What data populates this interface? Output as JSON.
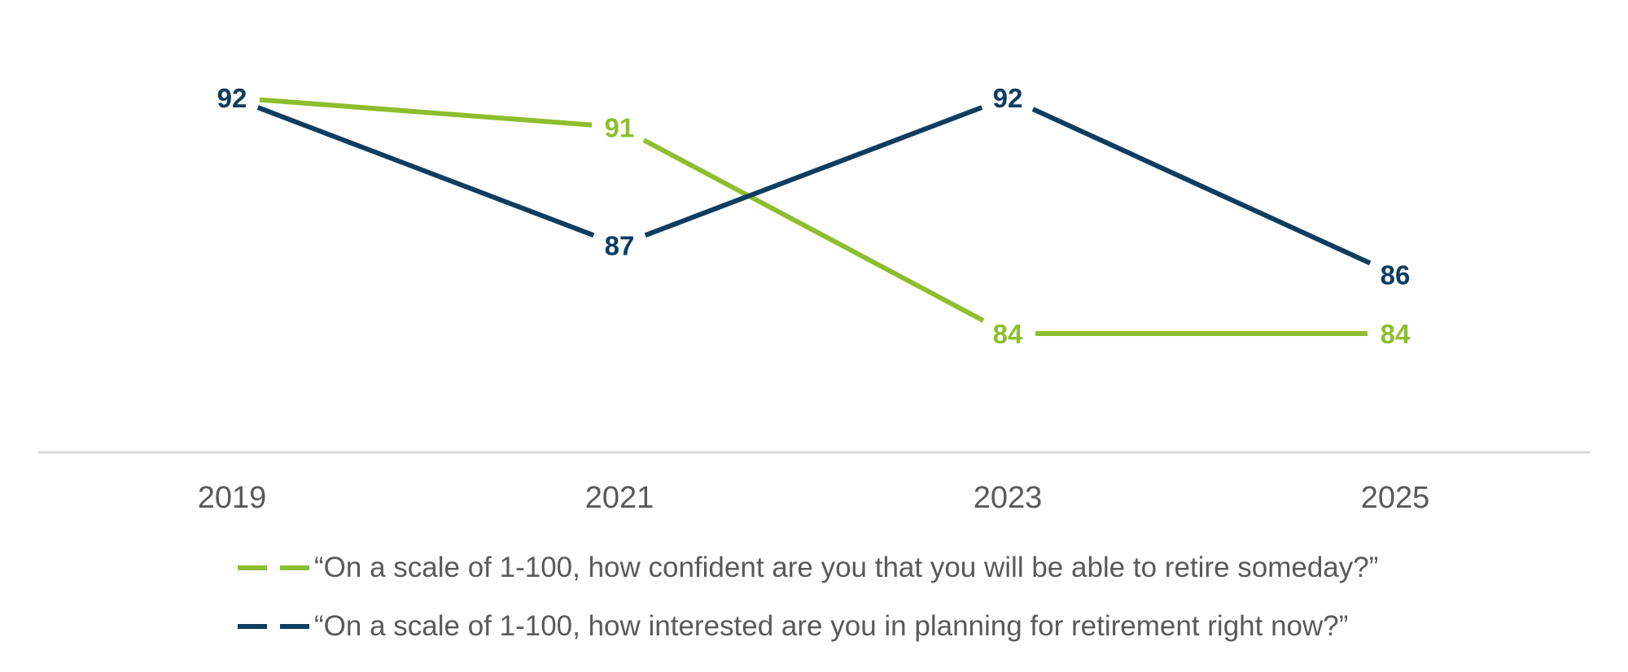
{
  "chart_data": {
    "type": "line",
    "x": [
      "2019",
      "2021",
      "2023",
      "2025"
    ],
    "series": [
      {
        "name": "“On a scale of 1-100, how confident are you that you will be able to retire someday?”",
        "values": [
          92,
          91,
          84,
          84
        ],
        "color": "#8DBE2E"
      },
      {
        "name": "“On a scale of 1-100, how interested are you in planning for retirement right now?”",
        "values": [
          92,
          87,
          92,
          86
        ],
        "color": "#0E3D62"
      }
    ],
    "ylim": [
      78,
      94
    ],
    "grid": false,
    "data_labels": true,
    "legend_position": "bottom"
  },
  "colors": {
    "axis": "#D9D9D9",
    "tick_text": "#595959"
  }
}
